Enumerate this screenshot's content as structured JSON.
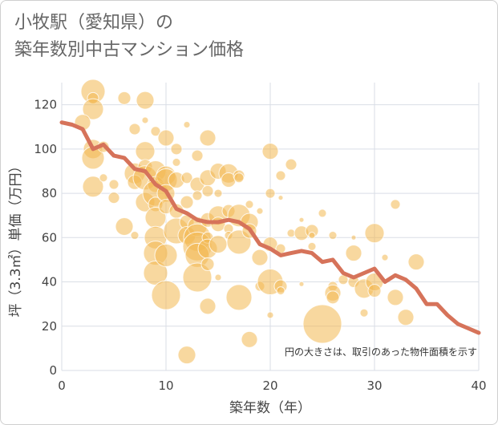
{
  "title_line1": "小牧駅（愛知県）の",
  "title_line2": "築年数別中古マンション価格",
  "chart_data": {
    "type": "scatter",
    "xlabel": "築年数（年）",
    "ylabel": "坪（3.3㎡）単価（万円）",
    "xlim": [
      0,
      40
    ],
    "ylim": [
      0,
      130
    ],
    "x_ticks": [
      "0",
      "10",
      "20",
      "30",
      "40"
    ],
    "y_ticks": [
      "0",
      "20",
      "40",
      "60",
      "80",
      "100",
      "120"
    ],
    "note": "円の大きさは、取引のあった物件面積を示す",
    "colors": {
      "bubble": "#f2b850",
      "line": "#d6735a",
      "grid": "#d9dee6"
    },
    "bubbles": [
      {
        "x": 3,
        "y": 126,
        "s": 15
      },
      {
        "x": 3,
        "y": 123,
        "s": 7
      },
      {
        "x": 3,
        "y": 118,
        "s": 13
      },
      {
        "x": 2,
        "y": 112,
        "s": 10
      },
      {
        "x": 3,
        "y": 100,
        "s": 12
      },
      {
        "x": 3,
        "y": 96,
        "s": 14
      },
      {
        "x": 3,
        "y": 83,
        "s": 13
      },
      {
        "x": 4,
        "y": 101,
        "s": 7
      },
      {
        "x": 4,
        "y": 87,
        "s": 5
      },
      {
        "x": 5,
        "y": 84,
        "s": 6
      },
      {
        "x": 5,
        "y": 78,
        "s": 7
      },
      {
        "x": 6,
        "y": 123,
        "s": 8
      },
      {
        "x": 6,
        "y": 65,
        "s": 11
      },
      {
        "x": 7,
        "y": 109,
        "s": 7
      },
      {
        "x": 7,
        "y": 89,
        "s": 13
      },
      {
        "x": 7,
        "y": 85,
        "s": 9
      },
      {
        "x": 7,
        "y": 61,
        "s": 5
      },
      {
        "x": 8,
        "y": 122,
        "s": 11
      },
      {
        "x": 8,
        "y": 113,
        "s": 4
      },
      {
        "x": 8,
        "y": 99,
        "s": 12
      },
      {
        "x": 8,
        "y": 92,
        "s": 9
      },
      {
        "x": 8,
        "y": 87,
        "s": 15
      },
      {
        "x": 8,
        "y": 76,
        "s": 12
      },
      {
        "x": 9,
        "y": 108,
        "s": 6
      },
      {
        "x": 9,
        "y": 90,
        "s": 13
      },
      {
        "x": 9,
        "y": 84,
        "s": 10
      },
      {
        "x": 9,
        "y": 80,
        "s": 16
      },
      {
        "x": 9,
        "y": 75,
        "s": 9
      },
      {
        "x": 9,
        "y": 69,
        "s": 13
      },
      {
        "x": 9,
        "y": 60,
        "s": 14
      },
      {
        "x": 9,
        "y": 53,
        "s": 15
      },
      {
        "x": 9,
        "y": 44,
        "s": 15
      },
      {
        "x": 10,
        "y": 105,
        "s": 10
      },
      {
        "x": 10,
        "y": 88,
        "s": 12
      },
      {
        "x": 10,
        "y": 86,
        "s": 14
      },
      {
        "x": 10,
        "y": 80,
        "s": 11
      },
      {
        "x": 10,
        "y": 74,
        "s": 9
      },
      {
        "x": 10,
        "y": 52,
        "s": 14
      },
      {
        "x": 10,
        "y": 34,
        "s": 18
      },
      {
        "x": 11,
        "y": 100,
        "s": 7
      },
      {
        "x": 11,
        "y": 94,
        "s": 5
      },
      {
        "x": 11,
        "y": 86,
        "s": 10
      },
      {
        "x": 11,
        "y": 72,
        "s": 9
      },
      {
        "x": 11,
        "y": 63,
        "s": 16
      },
      {
        "x": 12,
        "y": 111,
        "s": 4
      },
      {
        "x": 12,
        "y": 87,
        "s": 7
      },
      {
        "x": 12,
        "y": 76,
        "s": 8
      },
      {
        "x": 12,
        "y": 67,
        "s": 9
      },
      {
        "x": 12,
        "y": 61,
        "s": 11
      },
      {
        "x": 12,
        "y": 7,
        "s": 11
      },
      {
        "x": 13,
        "y": 97,
        "s": 7
      },
      {
        "x": 13,
        "y": 84,
        "s": 9
      },
      {
        "x": 13,
        "y": 79,
        "s": 6
      },
      {
        "x": 13,
        "y": 65,
        "s": 12
      },
      {
        "x": 13,
        "y": 60,
        "s": 17
      },
      {
        "x": 13,
        "y": 56,
        "s": 18
      },
      {
        "x": 13,
        "y": 52,
        "s": 15
      },
      {
        "x": 13,
        "y": 42,
        "s": 18
      },
      {
        "x": 14,
        "y": 105,
        "s": 10
      },
      {
        "x": 14,
        "y": 87,
        "s": 10
      },
      {
        "x": 14,
        "y": 81,
        "s": 7
      },
      {
        "x": 14,
        "y": 68,
        "s": 9
      },
      {
        "x": 14,
        "y": 60,
        "s": 7
      },
      {
        "x": 14,
        "y": 55,
        "s": 12
      },
      {
        "x": 14,
        "y": 48,
        "s": 8
      },
      {
        "x": 14,
        "y": 29,
        "s": 10
      },
      {
        "x": 15,
        "y": 90,
        "s": 10
      },
      {
        "x": 15,
        "y": 80,
        "s": 5
      },
      {
        "x": 15,
        "y": 70,
        "s": 12
      },
      {
        "x": 15,
        "y": 66,
        "s": 9
      },
      {
        "x": 15,
        "y": 57,
        "s": 11
      },
      {
        "x": 15,
        "y": 42,
        "s": 4
      },
      {
        "x": 16,
        "y": 89,
        "s": 12
      },
      {
        "x": 16,
        "y": 86,
        "s": 9
      },
      {
        "x": 16,
        "y": 72,
        "s": 8
      },
      {
        "x": 16,
        "y": 64,
        "s": 6
      },
      {
        "x": 16,
        "y": 61,
        "s": 5
      },
      {
        "x": 17,
        "y": 88,
        "s": 7
      },
      {
        "x": 17,
        "y": 87,
        "s": 6
      },
      {
        "x": 17,
        "y": 70,
        "s": 14
      },
      {
        "x": 17,
        "y": 58,
        "s": 15
      },
      {
        "x": 17,
        "y": 33,
        "s": 16
      },
      {
        "x": 18,
        "y": 75,
        "s": 5
      },
      {
        "x": 18,
        "y": 67,
        "s": 11
      },
      {
        "x": 18,
        "y": 63,
        "s": 9
      },
      {
        "x": 18,
        "y": 14,
        "s": 10
      },
      {
        "x": 19,
        "y": 72,
        "s": 4
      },
      {
        "x": 19,
        "y": 51,
        "s": 10
      },
      {
        "x": 19,
        "y": 38,
        "s": 6
      },
      {
        "x": 20,
        "y": 99,
        "s": 10
      },
      {
        "x": 20,
        "y": 80,
        "s": 6
      },
      {
        "x": 20,
        "y": 57,
        "s": 9
      },
      {
        "x": 20,
        "y": 40,
        "s": 16
      },
      {
        "x": 20,
        "y": 25,
        "s": 4
      },
      {
        "x": 21,
        "y": 88,
        "s": 6
      },
      {
        "x": 21,
        "y": 78,
        "s": 3
      },
      {
        "x": 21,
        "y": 55,
        "s": 6
      },
      {
        "x": 21,
        "y": 38,
        "s": 8
      },
      {
        "x": 21,
        "y": 36,
        "s": 5
      },
      {
        "x": 22,
        "y": 93,
        "s": 7
      },
      {
        "x": 22,
        "y": 62,
        "s": 5
      },
      {
        "x": 23,
        "y": 68,
        "s": 3
      },
      {
        "x": 23,
        "y": 62,
        "s": 9
      },
      {
        "x": 23,
        "y": 39,
        "s": 3
      },
      {
        "x": 24,
        "y": 63,
        "s": 8
      },
      {
        "x": 24,
        "y": 61,
        "s": 4
      },
      {
        "x": 24,
        "y": 56,
        "s": 5
      },
      {
        "x": 25,
        "y": 71,
        "s": 5
      },
      {
        "x": 25,
        "y": 21,
        "s": 24
      },
      {
        "x": 26,
        "y": 61,
        "s": 5
      },
      {
        "x": 26,
        "y": 38,
        "s": 6
      },
      {
        "x": 26,
        "y": 35,
        "s": 10
      },
      {
        "x": 26,
        "y": 33,
        "s": 8
      },
      {
        "x": 27,
        "y": 41,
        "s": 6
      },
      {
        "x": 28,
        "y": 60,
        "s": 3
      },
      {
        "x": 28,
        "y": 53,
        "s": 10
      },
      {
        "x": 28,
        "y": 40,
        "s": 7
      },
      {
        "x": 29,
        "y": 37,
        "s": 12
      },
      {
        "x": 29,
        "y": 26,
        "s": 5
      },
      {
        "x": 30,
        "y": 62,
        "s": 12
      },
      {
        "x": 30,
        "y": 40,
        "s": 11
      },
      {
        "x": 30,
        "y": 36,
        "s": 8
      },
      {
        "x": 31,
        "y": 51,
        "s": 4
      },
      {
        "x": 32,
        "y": 75,
        "s": 6
      },
      {
        "x": 32,
        "y": 33,
        "s": 10
      },
      {
        "x": 33,
        "y": 24,
        "s": 10
      },
      {
        "x": 34,
        "y": 49,
        "s": 10
      }
    ],
    "trend": {
      "x": [
        0,
        1,
        2,
        3,
        4,
        5,
        6,
        7,
        8,
        9,
        10,
        11,
        12,
        13,
        14,
        15,
        16,
        17,
        18,
        19,
        20,
        21,
        22,
        23,
        24,
        25,
        26,
        27,
        28,
        29,
        30,
        31,
        32,
        33,
        34,
        35,
        36,
        37,
        38,
        39,
        40
      ],
      "y": [
        112,
        111,
        109,
        100,
        102,
        97,
        96,
        91,
        90,
        84,
        81,
        73,
        71,
        68,
        67,
        67,
        68,
        67,
        64,
        57,
        55,
        52,
        53,
        54,
        53,
        49,
        50,
        44,
        42,
        44,
        46,
        40,
        43,
        41,
        37,
        30,
        30,
        25,
        21,
        19,
        17
      ]
    }
  }
}
